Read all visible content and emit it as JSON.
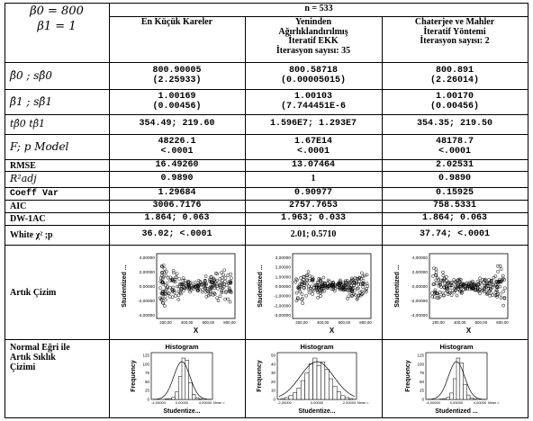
{
  "header": {
    "beta0_label": "β0 = 800",
    "beta1_label": "β1 = 1",
    "n_label": "n = 533"
  },
  "columns": [
    {
      "lines": [
        "En Küçük Kareler"
      ]
    },
    {
      "lines": [
        "Yeninden",
        "Ağırlıklandırılmış",
        "İteratif EKK",
        "İterasyon sayısı: 35"
      ]
    },
    {
      "lines": [
        "Chaterjee ve Mahler",
        "İteratif Yöntemi",
        "İterasyon sayısı: 2"
      ]
    }
  ],
  "row_labels": {
    "b0": "β̂0 ; sβ̂0",
    "b1": "β̂1 ; sβ̂1",
    "t": "tβ̂0   tβ̂1",
    "f": "F; p Model",
    "rmse": "RMSE",
    "r2": "R²adj",
    "cv": "Coeff Var",
    "aic": "AIC",
    "dw": "DW-1AC",
    "white": "White χ² ;p",
    "residual": "Artık Çizim",
    "normal": [
      "Normal Eğri ile",
      "Artık Sıklık",
      "Çizimi"
    ]
  },
  "rows": {
    "b0": [
      [
        "800.90005",
        "(2.25933)"
      ],
      [
        "800.58718",
        "(0.00005015)"
      ],
      [
        "800.891",
        "(2.26014)"
      ]
    ],
    "b1": [
      [
        "1.00169",
        "(0.00456)"
      ],
      [
        "1.00103",
        "(7.744451E-6"
      ],
      [
        "1.00170",
        "(0.00456)"
      ]
    ],
    "t": [
      "354.49; 219.60",
      "1.596E7; 1.293E7",
      "354.35; 219.50"
    ],
    "f": [
      [
        "48226.1",
        "<.0001"
      ],
      [
        "1.67E14",
        "<.0001"
      ],
      [
        "48178.7",
        "<.0001"
      ]
    ],
    "rmse": [
      "16.49260",
      "13.07464",
      "2.02531"
    ],
    "r2": [
      "0.9890",
      "1",
      "0.9890"
    ],
    "cv": [
      "1.29684",
      "0.90977",
      "0.15925"
    ],
    "aic": [
      "3006.7176",
      "2757.7653",
      "758.5331"
    ],
    "dw": [
      "1.864; 0.063",
      "1.963; 0.033",
      "1.864; 0.063"
    ],
    "white": [
      "36.02; <.0001",
      "2.01; 0.5710",
      "37.74; <.0001"
    ]
  },
  "scatter_plots": [
    {
      "ylabel": "Studentized ...",
      "xlabel": "X",
      "yticks": [
        "4,00000",
        "2,00000",
        "0,00000",
        "-2,00000",
        "-4,00000"
      ],
      "xticks": [
        "200,00",
        "400,00",
        "600,00",
        "800,00"
      ]
    },
    {
      "ylabel": "Studentized ...",
      "xlabel": "X",
      "yticks": [
        "3,00000",
        "2,00000",
        "1,00000",
        "0,00000",
        "-1,00000",
        "-2,00000",
        "-3,00000"
      ],
      "xticks": [
        "200,00",
        "400,00",
        "600,00",
        "800,00"
      ]
    },
    {
      "ylabel": "Studentized ...",
      "xlabel": "X",
      "yticks": [
        "4,00000",
        "2,00000",
        "0,00000",
        "-2,00000",
        "-4,00000"
      ],
      "xticks": [
        "200,00",
        "400,00",
        "600,00",
        "800,00"
      ]
    }
  ],
  "histograms": [
    {
      "title": "Histogram",
      "ylabel": "Frequency",
      "xlabel": "Studentize...",
      "yticks": [
        "125",
        "100",
        "75",
        "50",
        "25",
        "0"
      ],
      "xticks": [
        "-4,00000",
        "0,00000",
        "4,00000"
      ],
      "stats": "Mean =1,35..."
    },
    {
      "title": "Histogram",
      "ylabel": "Frequency",
      "xlabel": "Studentize...",
      "yticks": [
        "50",
        "40",
        "30",
        "20",
        "10",
        "0"
      ],
      "xticks": [
        "-2,00000",
        "0,00000",
        "2,00000"
      ],
      "stats": "Mean =..."
    },
    {
      "title": "Histogram",
      "ylabel": "Frequency",
      "xlabel": "Studentized ...",
      "yticks": [
        "125",
        "100",
        "75",
        "50",
        "25",
        "0"
      ],
      "xticks": [
        "-4,00000",
        "0,00000",
        "4,00000"
      ],
      "stats": "Mean =1,..."
    }
  ]
}
